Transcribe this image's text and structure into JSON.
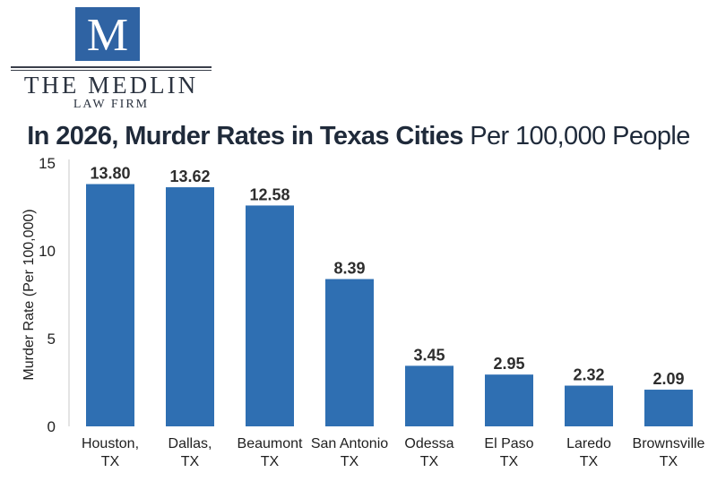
{
  "logo": {
    "letter": "M",
    "name": "THE MEDLIN",
    "subtitle": "LAW FIRM",
    "color": "#2f63a3"
  },
  "chart_data": {
    "type": "bar",
    "title_bold": "In 2026, Murder Rates in Texas Cities",
    "title_light": "Per 100,000 People",
    "ylabel": "Murder Rate (Per 100,000)",
    "xlabel": "",
    "ylim": [
      0,
      15
    ],
    "yticks": [
      0,
      5,
      10,
      15
    ],
    "grid": false,
    "bar_color": "#2f6fb2",
    "categories": [
      [
        "Houston,",
        "TX"
      ],
      [
        "Dallas,",
        "TX"
      ],
      [
        "Beaumont",
        "TX"
      ],
      [
        "San Antonio",
        "TX"
      ],
      [
        "Odessa",
        "TX"
      ],
      [
        "El Paso",
        "TX"
      ],
      [
        "Laredo",
        "TX"
      ],
      [
        "Brownsville",
        "TX"
      ]
    ],
    "values": [
      13.8,
      13.62,
      12.58,
      8.39,
      3.45,
      2.95,
      2.32,
      2.09
    ],
    "value_labels": [
      "13.80",
      "13.62",
      "12.58",
      "8.39",
      "3.45",
      "2.95",
      "2.32",
      "2.09"
    ]
  }
}
